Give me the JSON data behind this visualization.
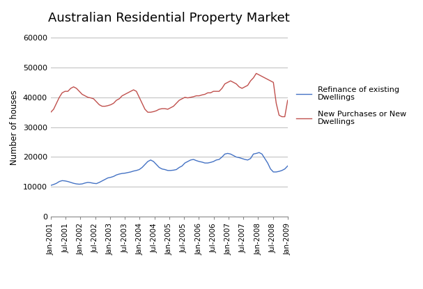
{
  "title": "Australian Residential Property Market",
  "ylabel": "Number of houses",
  "ylim": [
    0,
    60000
  ],
  "yticks": [
    0,
    10000,
    20000,
    30000,
    40000,
    50000,
    60000
  ],
  "background_color": "#ffffff",
  "grid_color": "#bbbbbb",
  "legend_labels": [
    "Refinance of existing\nDwellings",
    "New Purchases or New\nDwellings"
  ],
  "line_colors": [
    "#4472c4",
    "#c0504d"
  ],
  "x_tick_labels": [
    "Jan-2001",
    "Jul-2001",
    "Jan-2002",
    "Jul-2002",
    "Jan-2003",
    "Jul-2003",
    "Jan-2004",
    "Jul-2004",
    "Jan-2005",
    "Jul-2005",
    "Jan-2006",
    "Jul-2006",
    "Jan-2007",
    "Jul-2007",
    "Jan-2008",
    "Jul-2008",
    "Jan-2009"
  ],
  "refinance": [
    10500,
    10800,
    11200,
    11800,
    12100,
    12000,
    11800,
    11500,
    11200,
    11000,
    10900,
    11000,
    11300,
    11500,
    11400,
    11200,
    11100,
    11500,
    12000,
    12500,
    13000,
    13200,
    13500,
    14000,
    14300,
    14500,
    14600,
    14800,
    15000,
    15300,
    15500,
    15800,
    16500,
    17500,
    18500,
    19000,
    18500,
    17500,
    16500,
    16000,
    15800,
    15500,
    15500,
    15600,
    15800,
    16500,
    17000,
    18000,
    18500,
    19000,
    19200,
    18800,
    18500,
    18300,
    18000,
    18000,
    18200,
    18500,
    19000,
    19200,
    20000,
    21000,
    21200,
    21000,
    20500,
    20000,
    19800,
    19500,
    19200,
    19000,
    19500,
    21000,
    21200,
    21500,
    21000,
    19500,
    18000,
    16000,
    15000,
    15000,
    15200,
    15500,
    16000,
    17000
  ],
  "new_purchases": [
    35000,
    36000,
    38000,
    40000,
    41500,
    42000,
    42000,
    43000,
    43500,
    43000,
    42000,
    41000,
    40500,
    40000,
    39800,
    39500,
    38500,
    37500,
    37000,
    37000,
    37200,
    37500,
    38000,
    39000,
    39500,
    40500,
    41000,
    41500,
    42000,
    42500,
    42000,
    40000,
    38000,
    36000,
    35000,
    35000,
    35200,
    35500,
    36000,
    36200,
    36200,
    36000,
    36500,
    37000,
    38000,
    39000,
    39500,
    40000,
    39800,
    40000,
    40200,
    40500,
    40500,
    40800,
    41000,
    41500,
    41500,
    42000,
    42000,
    42000,
    43000,
    44500,
    45000,
    45500,
    45000,
    44500,
    43500,
    43000,
    43500,
    44000,
    45500,
    46500,
    48000,
    47500,
    47000,
    46500,
    46000,
    45500,
    45000,
    38000,
    34000,
    33500,
    33500,
    39000
  ]
}
